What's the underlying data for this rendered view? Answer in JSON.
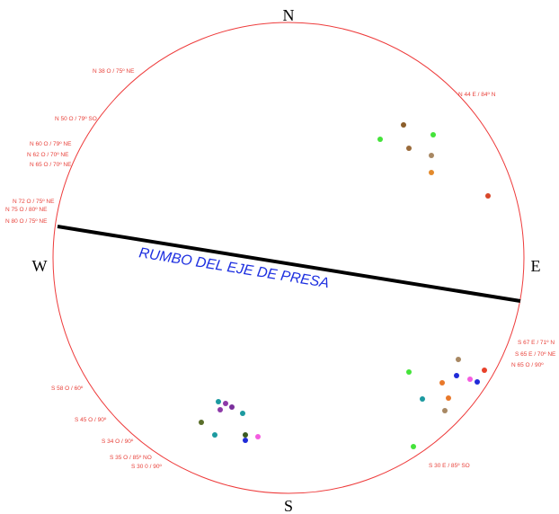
{
  "cardinals": {
    "north": "N",
    "south": "S",
    "east": "E",
    "west": "W"
  },
  "axis": {
    "label": "RUMBO DEL EJE DE PRESA"
  },
  "colors": {
    "circle": "#ee3b3b",
    "axis_line": "#000000",
    "axis_label": "#1d2fe0",
    "plane_labels": "#e8413a"
  },
  "plane_labels": [
    "N 38 O / 75º NE",
    "N 50 O / 79º SO",
    "N 60 O / 79º NE",
    "N 62 O / 70º NE",
    "N 65 O / 70º NE",
    "N 72 O / 75º NE",
    "N 75 O / 80º NE",
    "N 80 O / 75º NE",
    "N 44 E / 84º N",
    "S 67 E / 71º N",
    "S 65 E / 70º NE",
    "N 65 O / 90º",
    "S 30 E / 85º SO",
    "S 58 O / 60º",
    "S 45 O / 90º",
    "S 34 O / 90º",
    "S 35 O / 85º NO",
    "S 30 0 / 90º"
  ],
  "poles": [
    {
      "color": "#8b5e2a"
    },
    {
      "color": "#44e33a"
    },
    {
      "color": "#9a6b3a"
    },
    {
      "color": "#44e33a"
    },
    {
      "color": "#a88863"
    },
    {
      "color": "#e38a2c"
    },
    {
      "color": "#d8472a"
    },
    {
      "color": "#a88863"
    },
    {
      "color": "#44e33a"
    },
    {
      "color": "#e8412a"
    },
    {
      "color": "#1f2bd8"
    },
    {
      "color": "#e8782a"
    },
    {
      "color": "#f45ce0"
    },
    {
      "color": "#1f2bd8"
    },
    {
      "color": "#1c9aa0"
    },
    {
      "color": "#e8782a"
    },
    {
      "color": "#a88863"
    },
    {
      "color": "#44e33a"
    },
    {
      "color": "#1c9aa0"
    },
    {
      "color": "#8e3aa8"
    },
    {
      "color": "#7a2f9c"
    },
    {
      "color": "#8e3aa8"
    },
    {
      "color": "#1c9aa0"
    },
    {
      "color": "#5a6e2a"
    },
    {
      "color": "#1c9aa0"
    },
    {
      "color": "#3a5a22"
    },
    {
      "color": "#f45ce0"
    },
    {
      "color": "#1f2bd8"
    }
  ]
}
